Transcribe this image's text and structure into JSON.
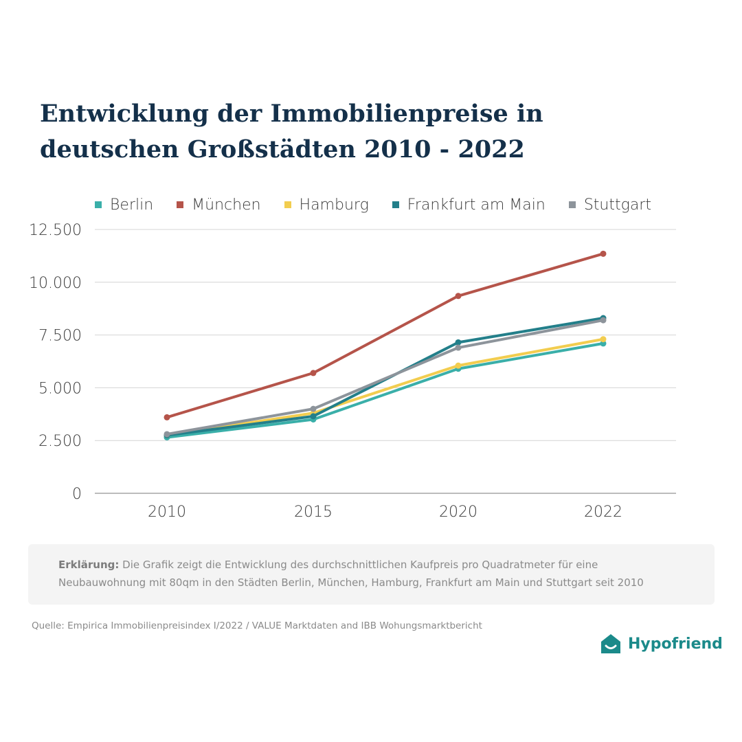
{
  "chart_data": {
    "type": "line",
    "title": "Entwicklung der Immobilienpreise in deutschen Großstädten 2010 - 2022",
    "title_lines": [
      "Entwicklung der Immobilienpreise in",
      "deutschen Großstädten 2010 - 2022"
    ],
    "categories": [
      "2010",
      "2015",
      "2020",
      "2022"
    ],
    "ylim": [
      0,
      12500
    ],
    "yticks": [
      0,
      2500,
      5000,
      7500,
      10000,
      12500
    ],
    "ytick_labels": [
      "0",
      "2.500",
      "5.000",
      "7.500",
      "10.000",
      "12.500"
    ],
    "grid": true,
    "legend_position": "top",
    "xlabel": "",
    "ylabel": "",
    "series": [
      {
        "name": "Berlin",
        "color": "#3aafa9",
        "values": [
          2650,
          3500,
          5900,
          7100
        ]
      },
      {
        "name": "München",
        "color": "#b5544a",
        "values": [
          3600,
          5700,
          9350,
          11350
        ]
      },
      {
        "name": "Hamburg",
        "color": "#f2cd4f",
        "values": [
          2750,
          3800,
          6050,
          7300
        ]
      },
      {
        "name": "Frankfurt am Main",
        "color": "#237f8a",
        "values": [
          2750,
          3650,
          7150,
          8300
        ]
      },
      {
        "name": "Stuttgart",
        "color": "#8d949b",
        "values": [
          2800,
          4000,
          6900,
          8200
        ]
      }
    ]
  },
  "note": {
    "lead": "Erklärung:",
    "text": " Die Grafik zeigt die Entwicklung des durchschnittlichen Kaufpreis pro Quadratmeter für eine Neubauwohnung mit 80qm in den Städten Berlin, München, Hamburg, Frankfurt am Main und Stuttgart seit 2010"
  },
  "source": "Quelle: Empirica Immobilienpreisindex I/2022  / VALUE Marktdaten and IBB Wohungsmarktbericht",
  "brand": {
    "name": "Hypofriend",
    "color": "#1b8a8a",
    "icon": "house-smile-icon"
  }
}
